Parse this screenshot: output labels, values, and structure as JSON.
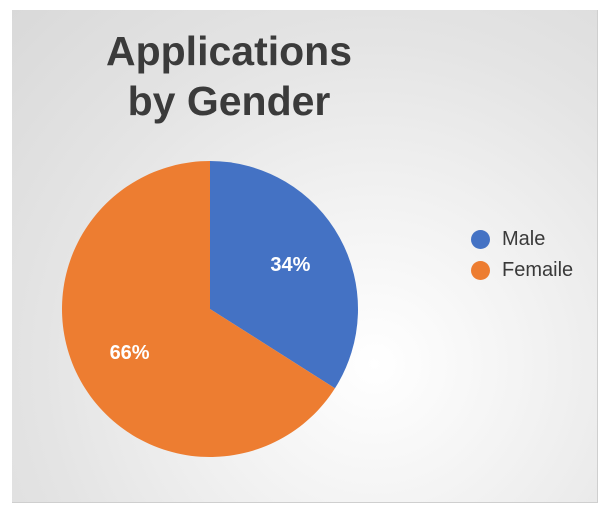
{
  "chart_data": {
    "type": "pie",
    "title": "Applications by Gender",
    "title_lines": [
      "Applications",
      "by Gender"
    ],
    "categories": [
      "Male",
      "Femaile"
    ],
    "values": [
      34,
      66
    ],
    "data_labels": [
      "34%",
      "66%"
    ],
    "colors": [
      "#4472c4",
      "#ed7d31"
    ],
    "legend": "right",
    "start_angle_deg": 0,
    "direction": "clockwise"
  }
}
